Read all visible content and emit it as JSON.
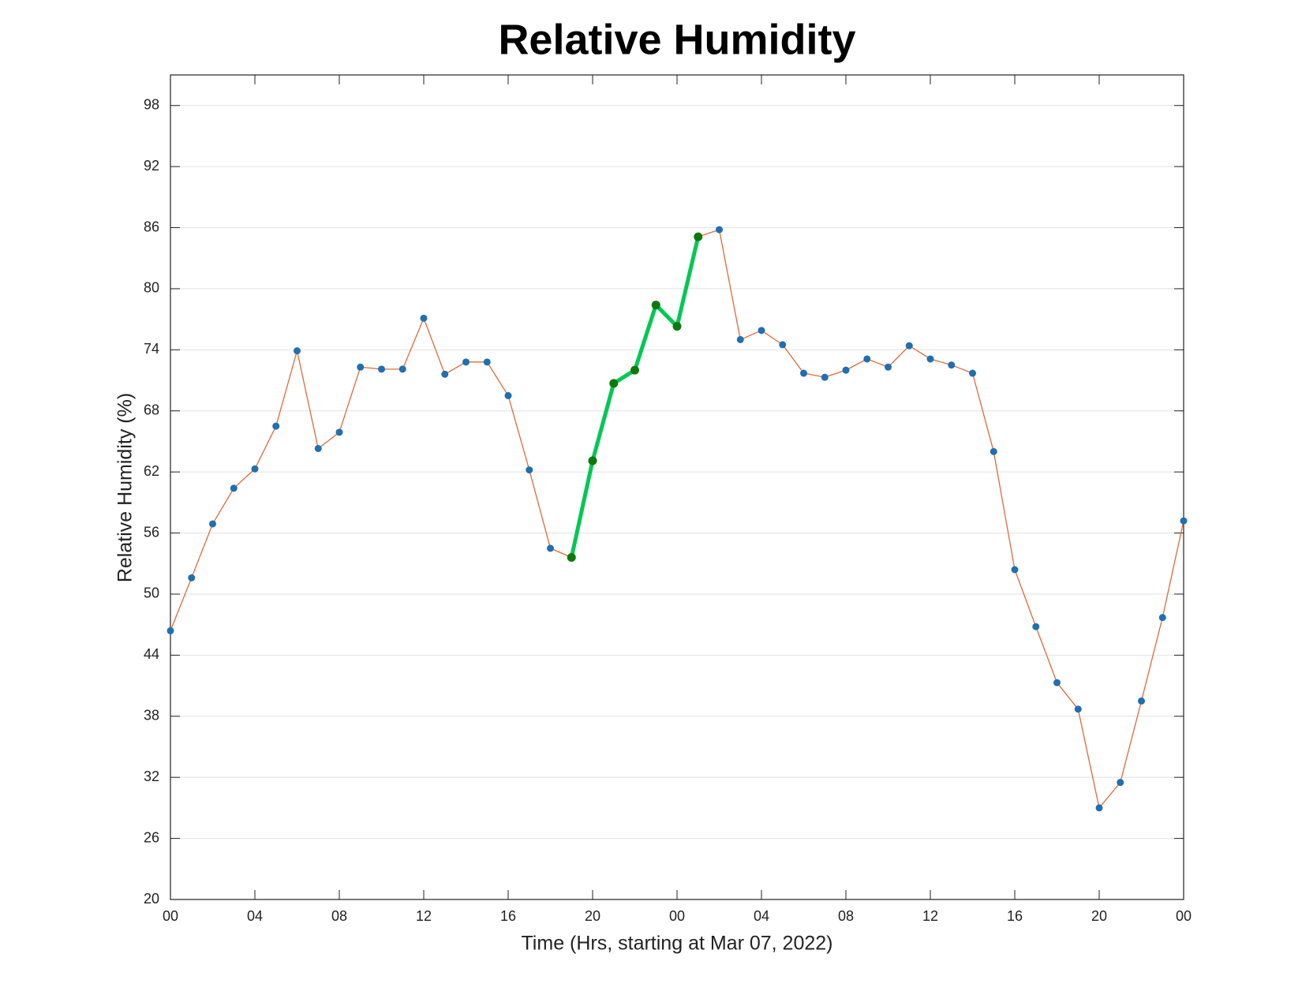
{
  "chart_data": {
    "type": "line",
    "title": "Relative Humidity",
    "x_label": "Time (Hrs, starting at Mar 07, 2022)",
    "y_label": "Relative Humidity (%)",
    "x": [
      0,
      1,
      2,
      3,
      4,
      5,
      6,
      7,
      8,
      9,
      10,
      11,
      12,
      13,
      14,
      15,
      16,
      17,
      18,
      19,
      20,
      21,
      22,
      23,
      24,
      25,
      26,
      27,
      28,
      29,
      30,
      31,
      32,
      33,
      34,
      35,
      36,
      37,
      38,
      39,
      40,
      41,
      42,
      43,
      44,
      45,
      46,
      47,
      48
    ],
    "series": [
      {
        "color": "#e06a3a",
        "marker_color": "#1f6fb2",
        "values": [
          46.4,
          51.6,
          56.9,
          60.4,
          62.3,
          66.5,
          73.9,
          64.3,
          65.9,
          72.3,
          72.1,
          72.1,
          77.1,
          71.6,
          72.8,
          72.8,
          69.5,
          62.2,
          54.5,
          53.6,
          63.1,
          70.7,
          72.0,
          78.4,
          76.3,
          85.1,
          85.8,
          75.0,
          75.9,
          74.5,
          71.7,
          71.3,
          72.0,
          73.1,
          72.3,
          74.4,
          73.1,
          72.5,
          71.7,
          64.0,
          52.4,
          46.8,
          41.3,
          38.7,
          29.0,
          31.5,
          39.5,
          47.7,
          57.2
        ]
      },
      {
        "color": "#00c853",
        "marker_color": "#0a7a0a",
        "values": [
          null,
          null,
          null,
          null,
          null,
          null,
          null,
          null,
          null,
          null,
          null,
          null,
          null,
          null,
          null,
          null,
          null,
          null,
          null,
          53.6,
          63.1,
          70.7,
          72.0,
          78.4,
          76.3,
          85.1,
          null,
          null,
          null,
          null,
          null,
          null,
          null,
          null,
          null,
          null,
          null,
          null,
          null,
          null,
          null,
          null,
          null,
          null,
          null,
          null,
          null,
          null,
          null
        ]
      }
    ],
    "xlim": [
      0,
      48
    ],
    "ylim": [
      20,
      101
    ],
    "xticks": [
      {
        "value": 0,
        "label": "00"
      },
      {
        "value": 4,
        "label": "04"
      },
      {
        "value": 8,
        "label": "08"
      },
      {
        "value": 12,
        "label": "12"
      },
      {
        "value": 16,
        "label": "16"
      },
      {
        "value": 20,
        "label": "20"
      },
      {
        "value": 24,
        "label": "00"
      },
      {
        "value": 28,
        "label": "04"
      },
      {
        "value": 32,
        "label": "08"
      },
      {
        "value": 36,
        "label": "12"
      },
      {
        "value": 40,
        "label": "16"
      },
      {
        "value": 44,
        "label": "20"
      },
      {
        "value": 48,
        "label": "00"
      }
    ],
    "yticks": [
      20,
      26,
      32,
      38,
      44,
      50,
      56,
      62,
      68,
      74,
      80,
      86,
      92,
      98
    ],
    "grid": true
  }
}
